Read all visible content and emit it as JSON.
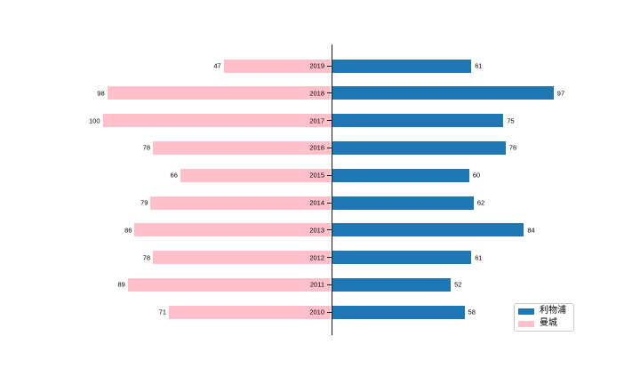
{
  "chart_data": {
    "type": "bar",
    "variant": "diverging-horizontal-pyramid",
    "title": "",
    "xlabel": "",
    "ylabel": "",
    "categories": [
      "2019",
      "2018",
      "2017",
      "2016",
      "2015",
      "2014",
      "2013",
      "2012",
      "2011",
      "2010"
    ],
    "series": [
      {
        "name": "利物浦",
        "side": "right",
        "color": "#1f77b4",
        "values": [
          61,
          97,
          75,
          76,
          60,
          62,
          84,
          61,
          52,
          58
        ]
      },
      {
        "name": "曼城",
        "side": "left",
        "color": "#ffc0cb",
        "values": [
          47,
          98,
          100,
          78,
          66,
          79,
          86,
          78,
          89,
          71
        ]
      }
    ],
    "axis_range_each_side": [
      0,
      100
    ],
    "value_labels_shown": true,
    "grid": false,
    "legend_position": "lower-right",
    "background_color": "#ffffff",
    "axis_line_color": "#1a1a1a",
    "text_color": "#000000"
  }
}
